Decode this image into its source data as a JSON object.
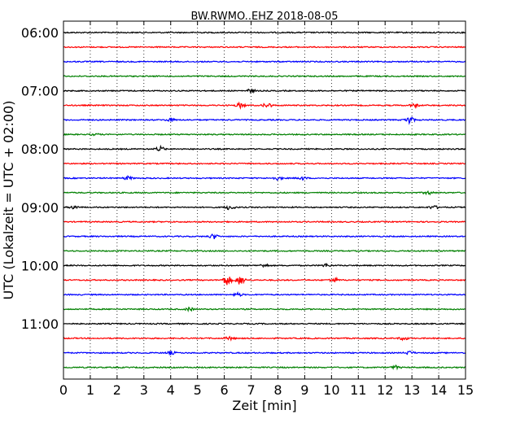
{
  "chart_data": {
    "type": "line",
    "title": "BW.RWMO..EHZ 2018-08-05",
    "xlabel": "Zeit  [min]",
    "ylabel": "UTC (Lokalzeit = UTC + 02:00)",
    "xlim": [
      0,
      15
    ],
    "x_ticks": [
      "0",
      "1",
      "2",
      "3",
      "4",
      "5",
      "6",
      "7",
      "8",
      "9",
      "10",
      "11",
      "12",
      "13",
      "14",
      "15"
    ],
    "y_tick_labels": [
      "06:00",
      "07:00",
      "08:00",
      "09:00",
      "10:00",
      "11:00"
    ],
    "grid": "vertical dotted",
    "trace_colors": [
      "#000000",
      "#ff0000",
      "#0000ff",
      "#008000"
    ],
    "traces": [
      {
        "start": "06:00",
        "events": []
      },
      {
        "start": "06:15",
        "events": []
      },
      {
        "start": "06:30",
        "events": []
      },
      {
        "start": "06:45",
        "events": []
      },
      {
        "start": "07:00",
        "events": [
          {
            "t": 7.0,
            "amp": 2
          }
        ]
      },
      {
        "start": "07:15",
        "events": [
          {
            "t": 6.6,
            "amp": 3
          },
          {
            "t": 7.6,
            "amp": 3
          },
          {
            "t": 13.1,
            "amp": 2
          }
        ]
      },
      {
        "start": "07:30",
        "events": [
          {
            "t": 4.0,
            "amp": 2
          },
          {
            "t": 12.9,
            "amp": 5
          }
        ]
      },
      {
        "start": "07:45",
        "events": [
          {
            "t": 1.2,
            "amp": 1
          }
        ]
      },
      {
        "start": "08:00",
        "events": [
          {
            "t": 3.6,
            "amp": 3
          }
        ]
      },
      {
        "start": "08:15",
        "events": []
      },
      {
        "start": "08:30",
        "events": [
          {
            "t": 2.4,
            "amp": 2
          },
          {
            "t": 8.0,
            "amp": 2
          },
          {
            "t": 8.9,
            "amp": 2
          }
        ]
      },
      {
        "start": "08:45",
        "events": [
          {
            "t": 13.6,
            "amp": 2
          }
        ]
      },
      {
        "start": "09:00",
        "events": [
          {
            "t": 0.4,
            "amp": 2
          },
          {
            "t": 6.2,
            "amp": 3
          },
          {
            "t": 13.8,
            "amp": 2
          }
        ]
      },
      {
        "start": "09:15",
        "events": []
      },
      {
        "start": "09:30",
        "events": [
          {
            "t": 5.6,
            "amp": 3
          }
        ]
      },
      {
        "start": "09:45",
        "events": []
      },
      {
        "start": "10:00",
        "events": [
          {
            "t": 7.5,
            "amp": 2
          },
          {
            "t": 9.8,
            "amp": 2
          }
        ]
      },
      {
        "start": "10:15",
        "events": [
          {
            "t": 6.1,
            "amp": 6
          },
          {
            "t": 6.6,
            "amp": 6
          },
          {
            "t": 10.1,
            "amp": 3
          }
        ]
      },
      {
        "start": "10:30",
        "events": [
          {
            "t": 6.5,
            "amp": 2
          }
        ]
      },
      {
        "start": "10:45",
        "events": [
          {
            "t": 4.7,
            "amp": 2
          }
        ]
      },
      {
        "start": "11:00",
        "events": []
      },
      {
        "start": "11:15",
        "events": [
          {
            "t": 6.2,
            "amp": 2
          },
          {
            "t": 12.7,
            "amp": 2
          }
        ]
      },
      {
        "start": "11:30",
        "events": [
          {
            "t": 4.0,
            "amp": 2
          },
          {
            "t": 12.9,
            "amp": 2
          }
        ]
      },
      {
        "start": "11:45",
        "events": [
          {
            "t": 12.4,
            "amp": 2
          }
        ]
      }
    ]
  }
}
